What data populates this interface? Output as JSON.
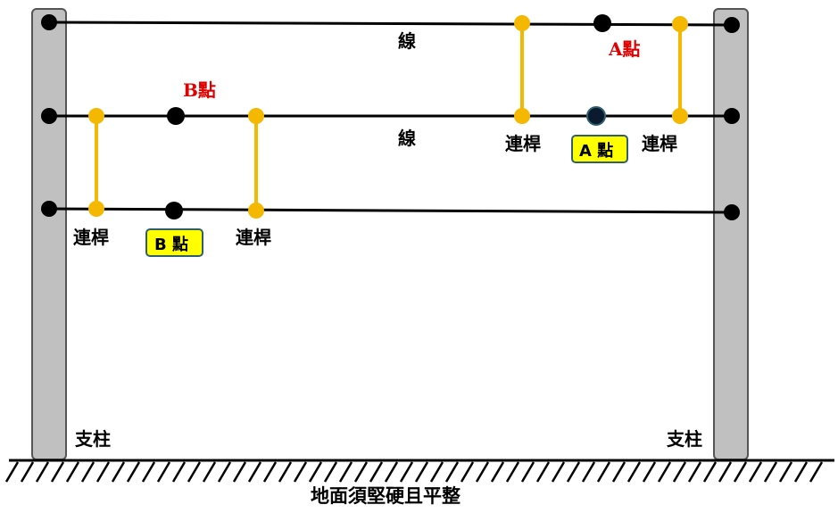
{
  "labels": {
    "wire": "線",
    "connector": "連桿",
    "pillar": "支柱",
    "point_a_red": "A點",
    "point_b_red": "B點",
    "point_a_box": "A 點",
    "point_b_box": "B 點",
    "ground": "地面須堅硬且平整"
  },
  "colors": {
    "pillar_fill": "#c0c0c0",
    "pillar_stroke": "#555555",
    "connector": "#f5b800",
    "wire": "#000000",
    "label_red": "#e00000",
    "box_fill": "#ffff00",
    "box_stroke": "#2f5f6f",
    "point_a_fill": "#0b1a2e"
  }
}
